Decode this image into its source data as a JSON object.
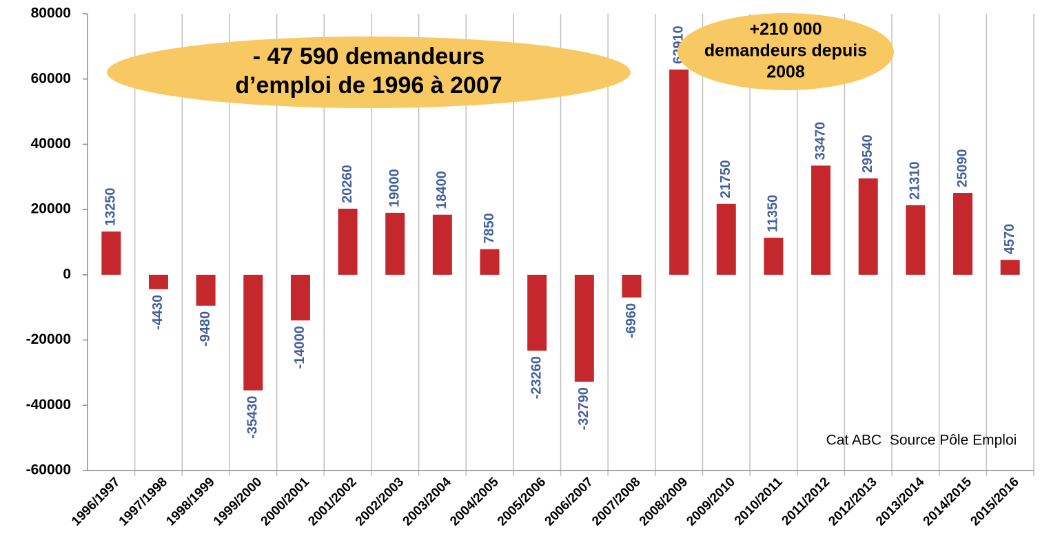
{
  "chart_data": {
    "type": "bar",
    "categories": [
      "1996/1997",
      "1997/1998",
      "1998/1999",
      "1999/2000",
      "2000/2001",
      "2001/2002",
      "2002/2003",
      "2003/2004",
      "2004/2005",
      "2005/2006",
      "2006/2007",
      "2007/2008",
      "2008/2009",
      "2009/2010",
      "2010/2011",
      "2011/2012",
      "2012/2013",
      "2013/2014",
      "2014/2015",
      "2015/2016"
    ],
    "values": [
      13250,
      -4430,
      -9480,
      -35430,
      -14000,
      20260,
      19000,
      18400,
      7850,
      -23260,
      -32790,
      -6960,
      62910,
      21750,
      11350,
      33470,
      29540,
      21310,
      25090,
      4570
    ],
    "color": "#c4282d",
    "label_color": "#44609c",
    "ylim": [
      -60000,
      80000
    ],
    "yticks": [
      -60000,
      -40000,
      -20000,
      0,
      20000,
      40000,
      60000,
      80000
    ],
    "grid": true,
    "annotations": [
      [
        "- 47 590 demandeurs",
        "d’emploi de 1996 à 2007"
      ],
      [
        "+210 000",
        "demandeurs depuis",
        "2008"
      ]
    ],
    "note": "Cat ABC  Source Pôle Emploi"
  }
}
